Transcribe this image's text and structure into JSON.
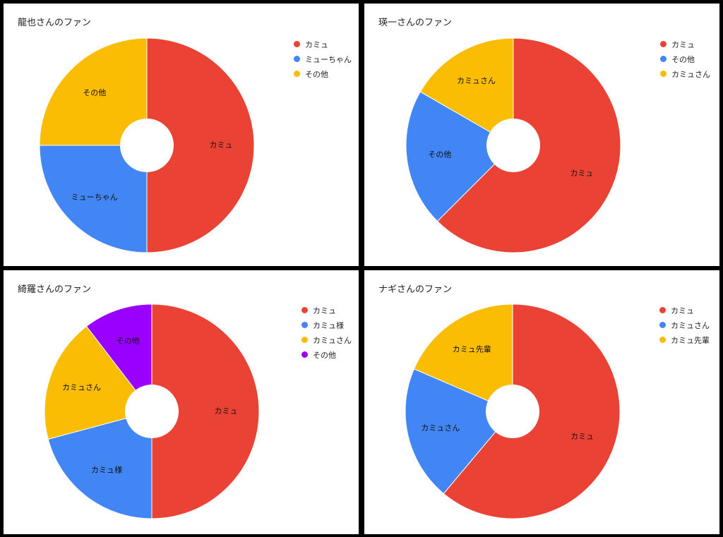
{
  "chart_data": [
    {
      "type": "pie",
      "title": "龍也さんのファン",
      "categories": [
        "カミュ",
        "ミューちゃん",
        "その他"
      ],
      "values": [
        0.5,
        0.25,
        0.25
      ],
      "colors": [
        "#ea4335",
        "#4285f4",
        "#fbbc04"
      ],
      "donut_hole": true,
      "legend": "right"
    },
    {
      "type": "pie",
      "title": "瑛一さんのファン",
      "categories": [
        "カミュ",
        "その他",
        "カミュさん"
      ],
      "values": [
        0.625,
        0.2083,
        0.1667
      ],
      "colors": [
        "#ea4335",
        "#4285f4",
        "#fbbc04"
      ],
      "donut_hole": true,
      "legend": "right"
    },
    {
      "type": "pie",
      "title": "綺羅さんのファン",
      "categories": [
        "カミュ",
        "カミュ様",
        "カミュさん",
        "その他"
      ],
      "values": [
        0.5,
        0.2083,
        0.1875,
        0.1042
      ],
      "colors": [
        "#ea4335",
        "#4285f4",
        "#fbbc04",
        "#9900ff"
      ],
      "donut_hole": true,
      "legend": "right"
    },
    {
      "type": "pie",
      "title": "ナギさんのファン",
      "categories": [
        "カミュ",
        "カミュさん",
        "カミュ先輩"
      ],
      "values": [
        0.6111,
        0.2037,
        0.1852
      ],
      "colors": [
        "#ea4335",
        "#4285f4",
        "#fbbc04"
      ],
      "donut_hole": true,
      "legend": "right"
    }
  ]
}
